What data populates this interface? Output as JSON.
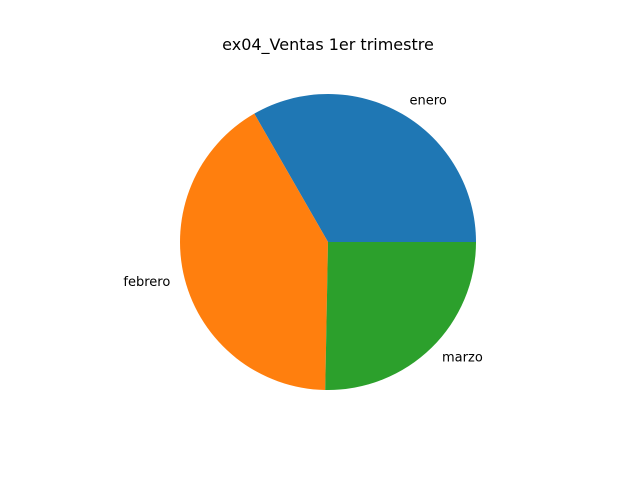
{
  "chart_data": {
    "type": "pie",
    "title": "ex04_Ventas 1er trimestre",
    "categories": [
      "enero",
      "febrero",
      "marzo"
    ],
    "values": [
      33.3,
      41.4,
      25.3
    ],
    "colors": [
      "#1f77b4",
      "#ff7f0e",
      "#2ca02c"
    ],
    "start_angle_deg": 0,
    "direction": "counterclockwise",
    "legend": "none"
  }
}
